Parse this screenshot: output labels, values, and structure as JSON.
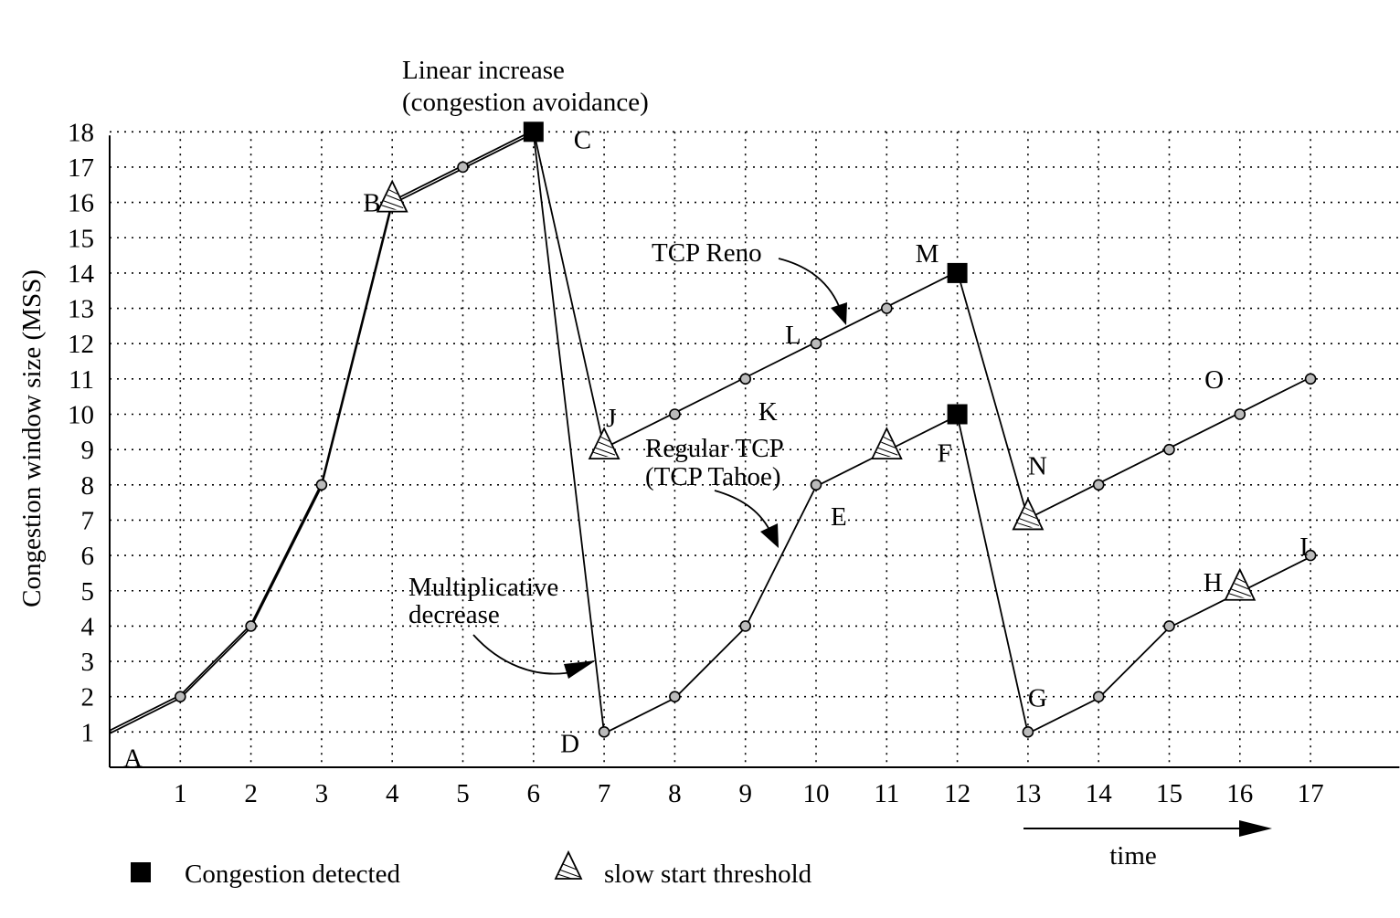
{
  "chart_data": {
    "type": "line",
    "xlabel": "time",
    "ylabel": "Congestion window size (MSS)",
    "x_ticks": [
      "1",
      "2",
      "3",
      "4",
      "5",
      "6",
      "7",
      "8",
      "9",
      "10",
      "11",
      "12",
      "13",
      "14",
      "15",
      "16",
      "17"
    ],
    "y_ticks": [
      "1",
      "2",
      "3",
      "4",
      "5",
      "6",
      "7",
      "8",
      "9",
      "10",
      "11",
      "12",
      "13",
      "14",
      "15",
      "16",
      "17",
      "18"
    ],
    "xlim": [
      0,
      18
    ],
    "ylim": [
      0,
      18
    ],
    "grid": true,
    "series": [
      {
        "name": "TCP Reno",
        "x": [
          0,
          1,
          2,
          3,
          4,
          5,
          6,
          7,
          8,
          9,
          10,
          11,
          12,
          13,
          14,
          15,
          16,
          17
        ],
        "y": [
          1,
          2,
          4,
          8,
          16,
          17,
          18,
          9,
          10,
          11,
          12,
          13,
          14,
          7,
          8,
          9,
          10,
          11
        ]
      },
      {
        "name": "Regular TCP (TCP Tahoe)",
        "x": [
          0,
          1,
          2,
          3,
          4,
          5,
          6,
          7,
          8,
          9,
          10,
          11,
          12,
          13,
          14,
          15,
          16,
          17
        ],
        "y": [
          1,
          2,
          4,
          8,
          16,
          17,
          18,
          1,
          2,
          4,
          8,
          9,
          10,
          1,
          2,
          4,
          5,
          6
        ]
      }
    ],
    "markers": {
      "congestion_detected": [
        [
          6,
          18
        ],
        [
          12,
          14
        ],
        [
          12,
          10
        ]
      ],
      "slow_start_threshold": [
        [
          4,
          16
        ],
        [
          7,
          9
        ],
        [
          11,
          9
        ],
        [
          13,
          7
        ],
        [
          16,
          5
        ]
      ]
    },
    "point_labels": [
      {
        "text": "A",
        "x": 0,
        "y": 1
      },
      {
        "text": "B",
        "x": 4,
        "y": 16
      },
      {
        "text": "C",
        "x": 6,
        "y": 18
      },
      {
        "text": "D",
        "x": 7,
        "y": 1
      },
      {
        "text": "E",
        "x": 10,
        "y": 8
      },
      {
        "text": "F",
        "x": 12,
        "y": 10
      },
      {
        "text": "G",
        "x": 13,
        "y": 1
      },
      {
        "text": "H",
        "x": 16,
        "y": 5
      },
      {
        "text": "I",
        "x": 17,
        "y": 6
      },
      {
        "text": "J",
        "x": 7,
        "y": 9
      },
      {
        "text": "K",
        "x": 9,
        "y": 11
      },
      {
        "text": "L",
        "x": 10,
        "y": 12
      },
      {
        "text": "M",
        "x": 12,
        "y": 14
      },
      {
        "text": "N",
        "x": 13,
        "y": 7
      },
      {
        "text": "O",
        "x": 15.5,
        "y": 11
      }
    ],
    "annotations": {
      "linear_increase": [
        "Linear increase",
        "(congestion avoidance)"
      ],
      "multiplicative_decrease": [
        "Multiplicative",
        "decrease"
      ],
      "tcp_reno": "TCP Reno",
      "regular_tcp": [
        "Regular TCP",
        "(TCP Tahoe)"
      ]
    },
    "legend": {
      "position": "bottom-left",
      "items": [
        {
          "label": "Congestion detected",
          "marker": "filled-square"
        },
        {
          "label": "slow start threshold",
          "marker": "hatched-triangle"
        }
      ]
    }
  }
}
